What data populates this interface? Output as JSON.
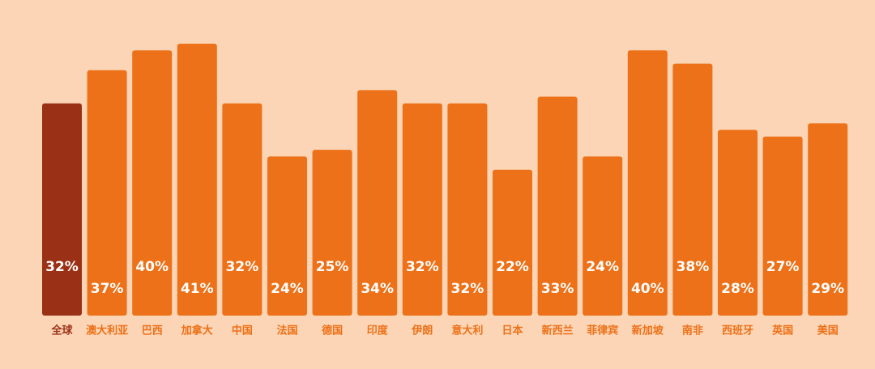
{
  "chart_data": {
    "type": "bar",
    "categories": [
      "全球",
      "澳大利亚",
      "巴西",
      "加拿大",
      "中国",
      "法国",
      "德国",
      "印度",
      "伊朗",
      "意大利",
      "日本",
      "新西兰",
      "菲律宾",
      "新加坡",
      "南非",
      "西班牙",
      "英国",
      "美国"
    ],
    "values": [
      32,
      37,
      40,
      41,
      32,
      24,
      25,
      34,
      32,
      32,
      22,
      33,
      24,
      40,
      38,
      28,
      27,
      29
    ],
    "value_labels": [
      "32%",
      "37%",
      "40%",
      "41%",
      "32%",
      "24%",
      "25%",
      "34%",
      "32%",
      "32%",
      "22%",
      "33%",
      "24%",
      "40%",
      "38%",
      "28%",
      "27%",
      "29%"
    ],
    "colors": [
      "#9a3116",
      "#ec7118",
      "#ec7118",
      "#ec7118",
      "#ec7118",
      "#ec7118",
      "#ec7118",
      "#ec7118",
      "#ec7118",
      "#ec7118",
      "#ec7118",
      "#ec7118",
      "#ec7118",
      "#ec7118",
      "#ec7118",
      "#ec7118",
      "#ec7118",
      "#ec7118"
    ]
  }
}
